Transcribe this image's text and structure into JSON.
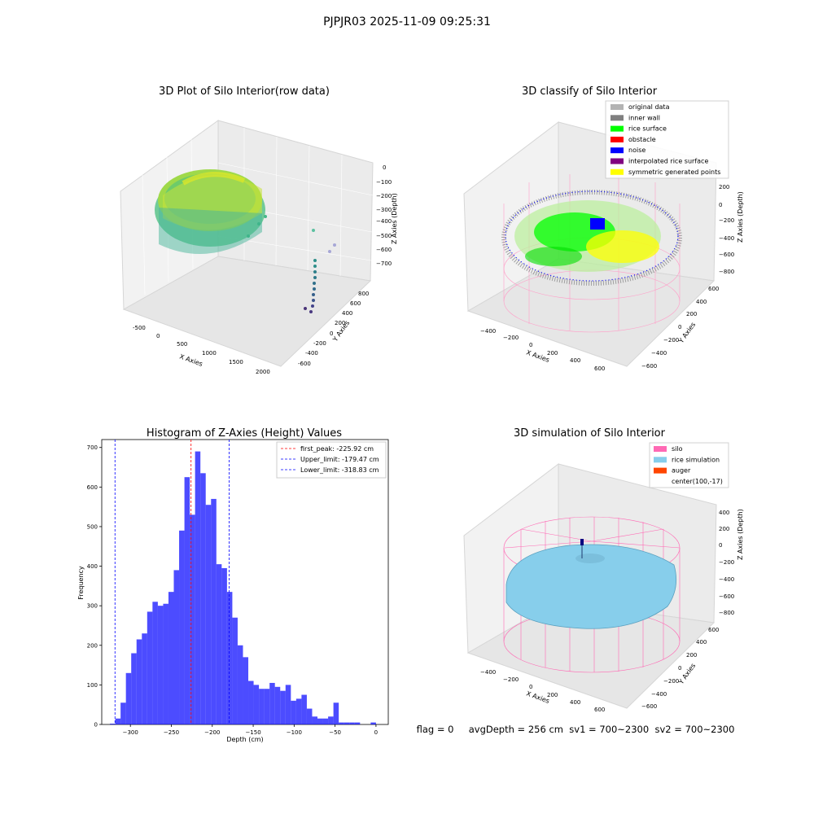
{
  "page": {
    "suptitle": "PJPJR03 2025-11-09 09:25:31",
    "footer": "flag = 0     avgDepth = 256 cm  sv1 = 700~2300  sv2 = 700~2300"
  },
  "panels": {
    "raw": {
      "title": "3D Plot of Silo Interior(row data)",
      "xlabel": "X Axies",
      "ylabel": "Y Axies",
      "zlabel": "Z Axies (Depth)",
      "xticks": [
        "-500",
        "0",
        "500",
        "1000",
        "1500",
        "2000"
      ],
      "yticks": [
        "-600",
        "-400",
        "-200",
        "0",
        "200",
        "400",
        "600",
        "800"
      ],
      "zticks": [
        "0",
        "−100",
        "−200",
        "−300",
        "−400",
        "−500",
        "−600",
        "−700"
      ]
    },
    "classify": {
      "title": "3D classify of Silo Interior",
      "xlabel": "X Axies",
      "ylabel": "Y Axies",
      "zlabel": "Z Axies (Depth)",
      "xticks": [
        "−400",
        "−200",
        "0",
        "200",
        "400",
        "600"
      ],
      "yticks": [
        "−600",
        "−400",
        "−200",
        "0",
        "200",
        "400",
        "600"
      ],
      "zticks": [
        "200",
        "0",
        "−200",
        "−400",
        "−600",
        "−800"
      ]
    },
    "sim": {
      "title": "3D simulation of Silo Interior",
      "xlabel": "X Axies",
      "ylabel": "Y Axies",
      "zlabel": "Z Axies (Depth)",
      "xticks": [
        "−400",
        "−200",
        "0",
        "200",
        "400",
        "600"
      ],
      "yticks": [
        "−600",
        "−400",
        "−200",
        "0",
        "200",
        "400",
        "600"
      ],
      "zticks": [
        "400",
        "200",
        "0",
        "−200",
        "−400",
        "−600",
        "−800"
      ]
    }
  },
  "legends": {
    "classify": [
      {
        "label": "original data",
        "color": "#b3b3b3"
      },
      {
        "label": "inner wall",
        "color": "#808080"
      },
      {
        "label": "rice surface",
        "color": "#00ff00"
      },
      {
        "label": "obstacle",
        "color": "#ff0000"
      },
      {
        "label": "noise",
        "color": "#0000ff"
      },
      {
        "label": "interpolated rice surface",
        "color": "#800080"
      },
      {
        "label": "symmetric generated points",
        "color": "#ffff00"
      }
    ],
    "sim": [
      {
        "label": "silo",
        "color": "#ff69b4"
      },
      {
        "label": "rice simulation",
        "color": "#87ceeb"
      },
      {
        "label": "auger",
        "color": "#ff4500"
      },
      {
        "label": "center(100,-17)",
        "color": ""
      }
    ]
  },
  "chart_data": [
    {
      "type": "bar",
      "title": "Histogram of Z-Axies (Height) Values",
      "xlabel": "Depth (cm)",
      "ylabel": "Frequency",
      "xlim": [
        -335,
        15
      ],
      "ylim": [
        0,
        720
      ],
      "xticks": [
        -300,
        -250,
        -200,
        -150,
        -100,
        -50,
        0
      ],
      "xtick_labels": [
        "−300",
        "−250",
        "−200",
        "−150",
        "−100",
        "−50",
        "0"
      ],
      "yticks": [
        0,
        100,
        200,
        300,
        400,
        500,
        600,
        700
      ],
      "bin_start": -325,
      "bin_width": 6.5,
      "values": [
        2,
        15,
        55,
        130,
        180,
        215,
        230,
        285,
        310,
        300,
        305,
        335,
        390,
        490,
        625,
        530,
        690,
        635,
        555,
        570,
        405,
        395,
        335,
        270,
        200,
        170,
        110,
        100,
        90,
        90,
        105,
        95,
        85,
        100,
        60,
        65,
        75,
        40,
        20,
        15,
        15,
        20,
        55,
        5,
        5,
        5,
        5,
        0,
        0,
        5
      ],
      "bar_color": "#0000ff",
      "lines": [
        {
          "label": "first_peak: -225.92 cm",
          "x": -225.92,
          "color": "#ff0000"
        },
        {
          "label": "Upper_limit: -179.47 cm",
          "x": -179.47,
          "color": "#0000ff"
        },
        {
          "label": "Lower_limit: -318.83 cm",
          "x": -318.83,
          "color": "#0000ff"
        }
      ]
    }
  ]
}
